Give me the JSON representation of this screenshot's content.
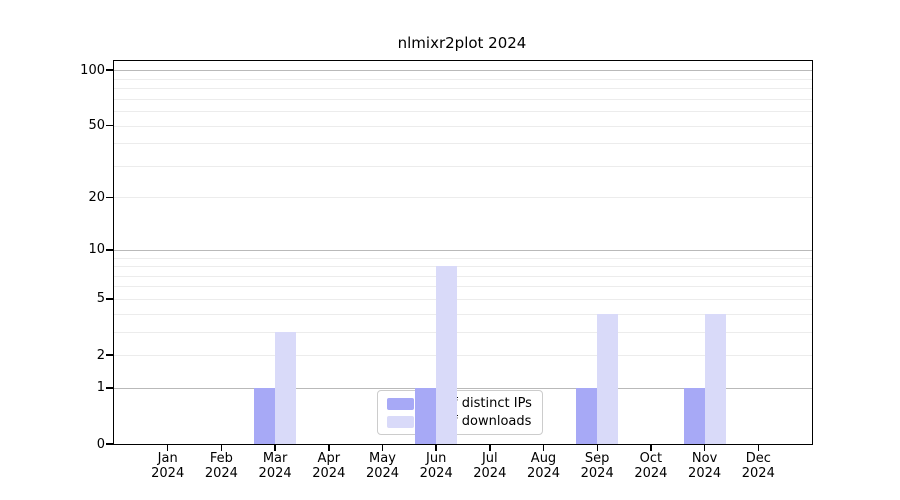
{
  "chart_data": {
    "type": "bar",
    "title": "nlmixr2plot 2024",
    "x_year": "2024",
    "categories": [
      "Jan",
      "Feb",
      "Mar",
      "Apr",
      "May",
      "Jun",
      "Jul",
      "Aug",
      "Sep",
      "Oct",
      "Nov",
      "Dec"
    ],
    "series": [
      {
        "name": "Nb of distinct IPs",
        "color": "#a7a9f6",
        "values": [
          0,
          0,
          1,
          0,
          0,
          1,
          0,
          0,
          1,
          0,
          1,
          0
        ]
      },
      {
        "name": "Nb of downloads",
        "color": "#d9daf9",
        "values": [
          0,
          0,
          3,
          0,
          0,
          8,
          0,
          0,
          4,
          0,
          4,
          0
        ]
      }
    ],
    "yscale": "log1p",
    "ylim": [
      0,
      112
    ],
    "yticks": [
      0,
      1,
      2,
      5,
      10,
      20,
      50,
      100
    ],
    "grid_major": [
      1,
      10,
      100
    ],
    "grid_minor": [
      2,
      3,
      4,
      5,
      6,
      7,
      8,
      9,
      20,
      30,
      40,
      50,
      60,
      70,
      80,
      90
    ],
    "grid": "horizontal",
    "legend_position": "lower center inside plot",
    "colors": {
      "major_grid": "#b9b9b9",
      "minor_grid": "#ececec",
      "spine": "#000000",
      "text": "#000000",
      "legend_border": "#cccccc"
    }
  }
}
